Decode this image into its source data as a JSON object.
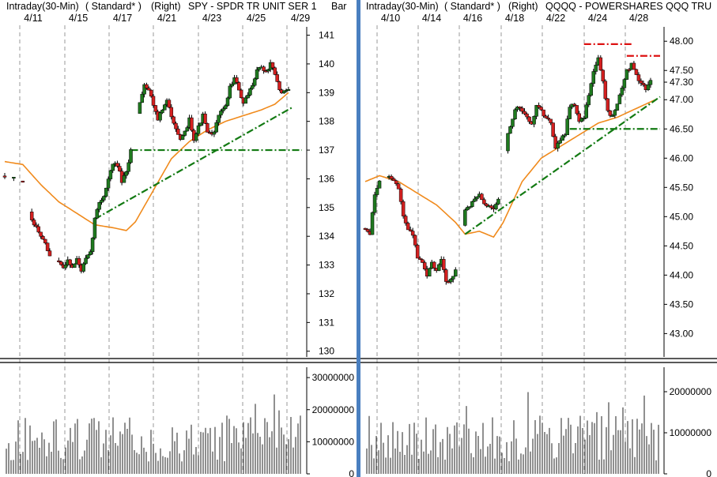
{
  "colors": {
    "background": "#ffffff",
    "up_candle": "#1f7a1f",
    "down_candle": "#d42020",
    "moving_average": "#f08a1c",
    "trendline": "#137a13",
    "resistance": "#dd1111",
    "volume": "#222222",
    "gridline": "#9a9a9a",
    "divider": "#4a7fc0"
  },
  "chart_data": [
    {
      "type": "candlestick",
      "title": "Intraday(30-Min) ( Standard* )   (Right)   SPY - SPDR TR UNIT SER 1  Bar",
      "period": "Intraday(30-Min)",
      "style": "( Standard* )",
      "axis_side": "(Right)",
      "symbol": "SPY - SPDR TR UNIT SER 1",
      "bar_label": "Bar",
      "date_labels": [
        "4/11",
        "4/15",
        "4/17",
        "4/21",
        "4/23",
        "4/25",
        "4/29"
      ],
      "yticks": [
        "141",
        "140",
        "139",
        "138",
        "137",
        "136",
        "135",
        "134",
        "133",
        "132",
        "131",
        "130"
      ],
      "ylim": [
        129.8,
        141.4
      ],
      "last_price": "139.08",
      "grid": true,
      "price_path": [
        [
          0,
          136.1
        ],
        [
          2,
          136.0
        ],
        [
          4,
          135.9
        ],
        [
          6,
          134.5
        ],
        [
          7,
          134.3
        ],
        [
          8,
          134.0
        ],
        [
          9,
          133.7
        ],
        [
          10,
          133.3
        ],
        [
          12,
          133.1
        ],
        [
          13,
          132.9
        ],
        [
          14,
          133.2
        ],
        [
          15,
          132.9
        ],
        [
          16,
          133.2
        ],
        [
          17,
          132.8
        ],
        [
          18,
          133.2
        ],
        [
          19,
          133.4
        ],
        [
          20,
          134.6
        ],
        [
          21,
          135.2
        ],
        [
          22,
          135.4
        ],
        [
          23,
          136.0
        ],
        [
          24,
          136.5
        ],
        [
          25,
          136.5
        ],
        [
          26,
          135.9
        ],
        [
          27,
          136.2
        ],
        [
          28,
          137.0
        ],
        [
          30,
          138.7
        ],
        [
          31,
          139.3
        ],
        [
          32,
          139.1
        ],
        [
          33,
          138.6
        ],
        [
          34,
          138.1
        ],
        [
          35,
          138.4
        ],
        [
          36,
          138.7
        ],
        [
          37,
          138.2
        ],
        [
          38,
          137.8
        ],
        [
          39,
          137.3
        ],
        [
          40,
          137.6
        ],
        [
          41,
          138.1
        ],
        [
          42,
          137.4
        ],
        [
          43,
          137.8
        ],
        [
          44,
          138.2
        ],
        [
          45,
          137.6
        ],
        [
          46,
          137.5
        ],
        [
          47,
          137.9
        ],
        [
          48,
          138.4
        ],
        [
          49,
          138.5
        ],
        [
          50,
          139.2
        ],
        [
          51,
          139.5
        ],
        [
          52,
          139.1
        ],
        [
          53,
          138.6
        ],
        [
          54,
          138.9
        ],
        [
          55,
          139.3
        ],
        [
          56,
          139.8
        ],
        [
          57,
          139.9
        ],
        [
          58,
          139.7
        ],
        [
          59,
          140.0
        ],
        [
          60,
          139.6
        ],
        [
          61,
          139.1
        ],
        [
          62,
          139.0
        ],
        [
          63,
          139.1
        ]
      ],
      "moving_average": [
        [
          0,
          136.6
        ],
        [
          4,
          136.5
        ],
        [
          8,
          135.8
        ],
        [
          12,
          135.2
        ],
        [
          16,
          134.8
        ],
        [
          20,
          134.4
        ],
        [
          24,
          134.3
        ],
        [
          27,
          134.2
        ],
        [
          29,
          134.5
        ],
        [
          33,
          135.6
        ],
        [
          37,
          136.7
        ],
        [
          41,
          137.3
        ],
        [
          45,
          137.7
        ],
        [
          49,
          138.0
        ],
        [
          53,
          138.2
        ],
        [
          57,
          138.4
        ],
        [
          60,
          138.6
        ],
        [
          63,
          139.0
        ]
      ],
      "trendlines": [
        {
          "style": "dash-dot",
          "color": "green",
          "points": [
            [
              20,
              134.6
            ],
            [
              64,
              138.5
            ]
          ]
        },
        {
          "style": "dash-dot",
          "color": "green",
          "points": [
            [
              28,
              137.0
            ],
            [
              66,
              137.0
            ]
          ]
        }
      ],
      "volume": {
        "yticks": [
          "30000000",
          "20000000",
          "10000000",
          "0"
        ],
        "ylim": [
          0,
          32000000
        ]
      }
    },
    {
      "type": "candlestick",
      "title": "Intraday(30-Min) ( Standard* )   (Right)   QQQQ - POWERSHARES QQQ TRU",
      "period": "Intraday(30-Min)",
      "style": "( Standard* )",
      "axis_side": "(Right)",
      "symbol": "QQQQ - POWERSHARES QQQ TRU",
      "date_labels": [
        "4/10",
        "4/14",
        "4/16",
        "4/18",
        "4/22",
        "4/24",
        "4/28"
      ],
      "yticks": [
        "48.00",
        "47.50",
        "47.30",
        "47.00",
        "46.50",
        "46.00",
        "45.50",
        "45.00",
        "44.50",
        "44.00",
        "43.50",
        "43.00"
      ],
      "ylim": [
        42.6,
        48.3
      ],
      "last_price": "47.30",
      "grid": true,
      "price_path": [
        [
          0,
          44.8
        ],
        [
          1,
          44.7
        ],
        [
          2,
          45.4
        ],
        [
          3,
          45.6
        ],
        [
          5,
          45.7
        ],
        [
          6,
          45.6
        ],
        [
          7,
          45.5
        ],
        [
          8,
          45.0
        ],
        [
          9,
          44.8
        ],
        [
          10,
          44.7
        ],
        [
          11,
          44.3
        ],
        [
          12,
          44.2
        ],
        [
          13,
          44.0
        ],
        [
          14,
          44.2
        ],
        [
          15,
          44.1
        ],
        [
          16,
          44.3
        ],
        [
          17,
          43.9
        ],
        [
          18,
          43.9
        ],
        [
          19,
          44.1
        ],
        [
          21,
          45.1
        ],
        [
          22,
          45.2
        ],
        [
          23,
          45.3
        ],
        [
          24,
          45.4
        ],
        [
          25,
          45.2
        ],
        [
          26,
          45.2
        ],
        [
          27,
          45.1
        ],
        [
          28,
          45.3
        ],
        [
          30,
          46.4
        ],
        [
          31,
          46.7
        ],
        [
          32,
          46.9
        ],
        [
          33,
          46.8
        ],
        [
          34,
          46.7
        ],
        [
          35,
          46.6
        ],
        [
          36,
          46.9
        ],
        [
          37,
          46.8
        ],
        [
          38,
          46.7
        ],
        [
          39,
          46.6
        ],
        [
          40,
          46.2
        ],
        [
          41,
          46.3
        ],
        [
          42,
          46.4
        ],
        [
          43,
          46.9
        ],
        [
          44,
          46.9
        ],
        [
          45,
          46.6
        ],
        [
          46,
          46.7
        ],
        [
          47,
          47.1
        ],
        [
          48,
          47.5
        ],
        [
          49,
          47.7
        ],
        [
          50,
          47.3
        ],
        [
          51,
          46.8
        ],
        [
          52,
          46.7
        ],
        [
          53,
          46.9
        ],
        [
          54,
          47.2
        ],
        [
          55,
          47.5
        ],
        [
          56,
          47.6
        ],
        [
          57,
          47.4
        ],
        [
          58,
          47.3
        ],
        [
          59,
          47.2
        ],
        [
          60,
          47.3
        ]
      ],
      "moving_average": [
        [
          0,
          45.6
        ],
        [
          3,
          45.7
        ],
        [
          7,
          45.6
        ],
        [
          11,
          45.4
        ],
        [
          15,
          45.2
        ],
        [
          19,
          44.9
        ],
        [
          21,
          44.7
        ],
        [
          24,
          44.75
        ],
        [
          27,
          44.65
        ],
        [
          29,
          44.9
        ],
        [
          33,
          45.6
        ],
        [
          37,
          46.0
        ],
        [
          41,
          46.2
        ],
        [
          45,
          46.4
        ],
        [
          49,
          46.6
        ],
        [
          53,
          46.7
        ],
        [
          57,
          46.85
        ],
        [
          61,
          47.0
        ]
      ],
      "trendlines": [
        {
          "style": "dash-dot",
          "color": "green",
          "points": [
            [
              21,
              44.7
            ],
            [
              62,
              47.05
            ]
          ]
        },
        {
          "style": "dash-dot",
          "color": "green",
          "points": [
            [
              43,
              46.5
            ],
            [
              62,
              46.5
            ]
          ]
        },
        {
          "style": "dash-dot",
          "color": "red",
          "points": [
            [
              46,
              47.95
            ],
            [
              56,
              47.95
            ]
          ]
        },
        {
          "style": "dash-dot",
          "color": "red",
          "points": [
            [
              55,
              47.75
            ],
            [
              62,
              47.75
            ]
          ]
        }
      ],
      "volume": {
        "yticks": [
          "20000000",
          "10000000",
          "0"
        ],
        "ylim": [
          0,
          25000000
        ]
      }
    }
  ]
}
